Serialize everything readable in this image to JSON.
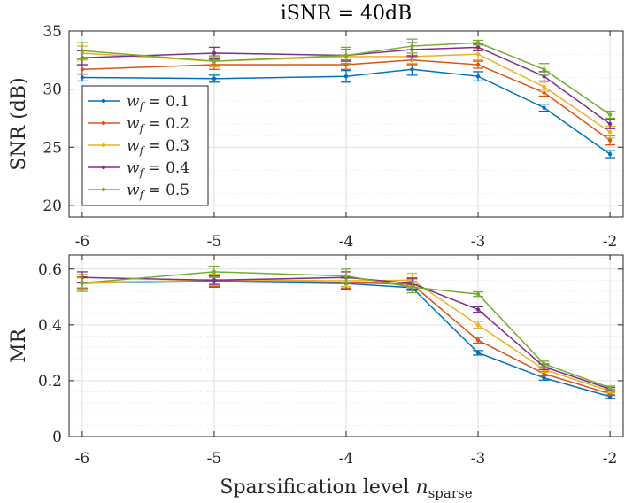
{
  "chart_data": {
    "type": "line",
    "title": "iSNR = 40dB",
    "xlabel": "Sparsification level n_sparse",
    "xlabel_main": "Sparsification level",
    "xlabel_var": "n",
    "xlabel_sub": "sparse",
    "x": [
      -6,
      -5,
      -4,
      -3.5,
      -3,
      -2.5,
      -2
    ],
    "xticks": [
      -6,
      -5,
      -4,
      -3,
      -2
    ],
    "xtick_labels": [
      "-6",
      "-5",
      "-4",
      "-3",
      "-2"
    ],
    "xlim": [
      -6.1,
      -1.9
    ],
    "legend_position": "left",
    "legend_var": "w",
    "legend_sub": "f",
    "series_colors": [
      "#0072BD",
      "#D95319",
      "#EDB120",
      "#7E2F8E",
      "#77AC30"
    ],
    "subplots": [
      {
        "name": "snr",
        "ylabel": "SNR (dB)",
        "ylim": [
          19,
          35
        ],
        "yticks": [
          20,
          25,
          30,
          35
        ],
        "ytick_labels": [
          "20",
          "25",
          "30",
          "35"
        ],
        "grid": true,
        "minor_grid": true,
        "has_legend": true,
        "series": [
          {
            "name": "w_f = 0.1",
            "label_value": "= 0.1",
            "values": [
              31.0,
              30.9,
              31.1,
              31.7,
              31.1,
              28.4,
              24.4
            ],
            "errors": [
              0.3,
              0.3,
              0.5,
              0.5,
              0.4,
              0.3,
              0.3
            ]
          },
          {
            "name": "w_f = 0.2",
            "label_value": "= 0.2",
            "values": [
              31.7,
              32.1,
              32.1,
              32.5,
              32.1,
              29.7,
              25.6
            ],
            "errors": [
              0.4,
              0.4,
              0.4,
              0.4,
              0.3,
              0.3,
              0.4
            ]
          },
          {
            "name": "w_f = 0.3",
            "label_value": "= 0.3",
            "values": [
              33.1,
              32.4,
              32.8,
              32.8,
              33.0,
              30.2,
              26.3
            ],
            "errors": [
              0.6,
              0.5,
              0.6,
              0.6,
              0.5,
              0.4,
              0.5
            ]
          },
          {
            "name": "w_f = 0.4",
            "label_value": "= 0.4",
            "values": [
              32.7,
              33.1,
              32.9,
              33.4,
              33.6,
              31.1,
              27.0
            ],
            "errors": [
              0.6,
              0.5,
              0.5,
              0.6,
              0.3,
              0.4,
              0.4
            ]
          },
          {
            "name": "w_f = 0.5",
            "label_value": "= 0.5",
            "values": [
              33.3,
              32.4,
              32.9,
              33.7,
              34.0,
              31.7,
              27.8
            ],
            "errors": [
              0.7,
              0.4,
              0.7,
              0.6,
              0.2,
              0.5,
              0.3
            ]
          }
        ]
      },
      {
        "name": "mr",
        "ylabel": "MR",
        "ylim": [
          0,
          0.65
        ],
        "yticks": [
          0,
          0.2,
          0.4,
          0.6
        ],
        "ytick_labels": [
          "0",
          "0.2",
          "0.4",
          "0.6"
        ],
        "grid": true,
        "minor_grid": true,
        "has_legend": false,
        "series": [
          {
            "name": "w_f = 0.1",
            "values": [
              0.55,
              0.555,
              0.548,
              0.533,
              0.3,
              0.21,
              0.143
            ],
            "errors": [
              0.02,
              0.02,
              0.02,
              0.01,
              0.008,
              0.008,
              0.006
            ]
          },
          {
            "name": "w_f = 0.2",
            "values": [
              0.552,
              0.558,
              0.552,
              0.545,
              0.345,
              0.225,
              0.153
            ],
            "errors": [
              0.02,
              0.02,
              0.02,
              0.02,
              0.01,
              0.008,
              0.006
            ]
          },
          {
            "name": "w_f = 0.3",
            "values": [
              0.548,
              0.562,
              0.558,
              0.56,
              0.4,
              0.24,
              0.163
            ],
            "errors": [
              0.02,
              0.02,
              0.02,
              0.025,
              0.012,
              0.01,
              0.007
            ]
          },
          {
            "name": "w_f = 0.4",
            "values": [
              0.57,
              0.56,
              0.57,
              0.548,
              0.455,
              0.25,
              0.17
            ],
            "errors": [
              0.02,
              0.015,
              0.02,
              0.02,
              0.01,
              0.01,
              0.006
            ]
          },
          {
            "name": "w_f = 0.5",
            "values": [
              0.55,
              0.59,
              0.575,
              0.535,
              0.51,
              0.26,
              0.175
            ],
            "errors": [
              0.03,
              0.02,
              0.025,
              0.02,
              0.008,
              0.01,
              0.006
            ]
          }
        ]
      }
    ]
  }
}
